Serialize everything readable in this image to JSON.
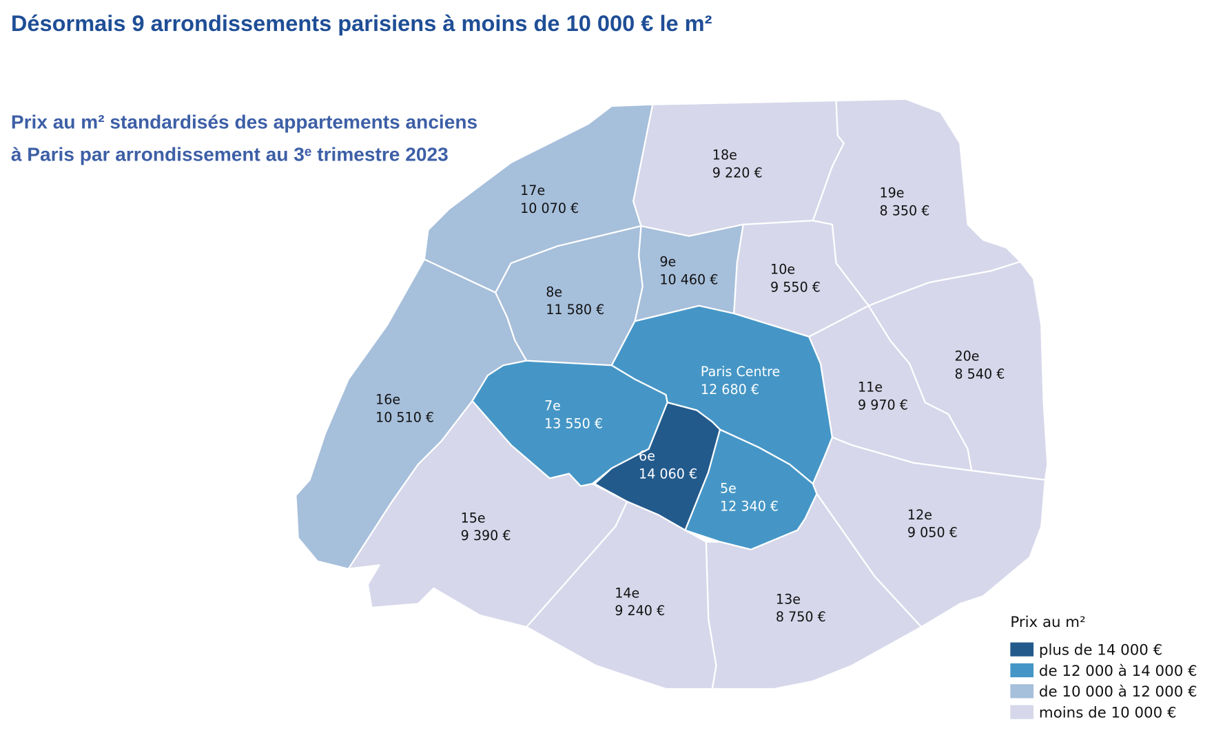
{
  "title": "Désormais 9 arrondissements parisiens à moins de 10 000 € le m²",
  "subtitle": [
    "Prix au m² standardisés des appartements anciens",
    "à Paris par arrondissement au 3ᵉ trimestre 2023"
  ],
  "districts": [
    {
      "name": "17e",
      "price": "10 070 €",
      "color": "#a6bfdb"
    },
    {
      "name": "18e",
      "price": "9 220 €",
      "color": "#d6d7ea"
    },
    {
      "name": "19e",
      "price": "8 350 €",
      "color": "#d6d7ea"
    },
    {
      "name": "9e",
      "price": "10 460 €",
      "color": "#a6bfdb"
    },
    {
      "name": "10e",
      "price": "9 550 €",
      "color": "#d6d7ea"
    },
    {
      "name": "8e",
      "price": "11 580 €",
      "color": "#a6bfdb"
    },
    {
      "name": "16e",
      "price": "10 510 €",
      "color": "#a6bfdb"
    },
    {
      "name": "Paris Centre",
      "price": "12 680 €",
      "color": "#4596c6"
    },
    {
      "name": "7e",
      "price": "13 550 €",
      "color": "#4596c6"
    },
    {
      "name": "6e",
      "price": "14 060 €",
      "color": "#235a8c"
    },
    {
      "name": "5e",
      "price": "12 340 €",
      "color": "#4596c6"
    },
    {
      "name": "11e",
      "price": "9 970 €",
      "color": "#d6d7ea"
    },
    {
      "name": "20e",
      "price": "8 540 €",
      "color": "#d6d7ea"
    },
    {
      "name": "12e",
      "price": "9 050 €",
      "color": "#d6d7ea"
    },
    {
      "name": "13e",
      "price": "8 750 €",
      "color": "#d6d7ea"
    },
    {
      "name": "14e",
      "price": "9 240 €",
      "color": "#d6d7ea"
    },
    {
      "name": "15e",
      "price": "9 390 €",
      "color": "#d6d7ea"
    }
  ],
  "legend": {
    "title": "Prix au m²",
    "items": [
      {
        "label": "plus de 14 000 €",
        "color": "#235a8c"
      },
      {
        "label": "de 12 000 à 14 000 €",
        "color": "#4596c6"
      },
      {
        "label": "de 10 000 à 12 000 €",
        "color": "#a6bfdb"
      },
      {
        "label": "moins de 10 000 €",
        "color": "#d6d7ea"
      }
    ]
  }
}
